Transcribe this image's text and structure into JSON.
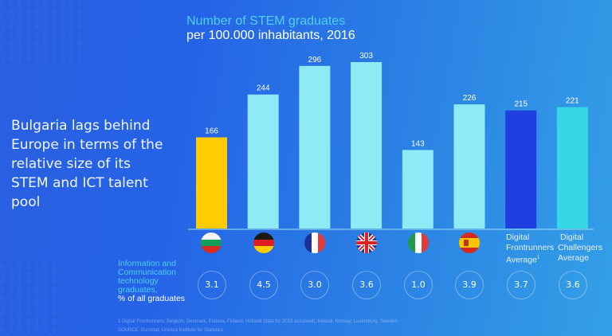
{
  "headline": "Bulgaria lags behind Europe in terms of the relative size of its STEM and ICT talent pool",
  "chart_data": {
    "type": "bar",
    "title": "Number of STEM graduates",
    "subtitle": "per 100.000 inhabitants, 2016",
    "xlabel": "",
    "ylabel": "",
    "ylim": [
      0,
      303
    ],
    "grid": false,
    "categories": [
      "Bulgaria",
      "Germany",
      "France",
      "United Kingdom",
      "Italy",
      "Spain",
      "Digital Frontrunners Average",
      "Digital Challengers Average"
    ],
    "values": [
      166,
      244,
      296,
      303,
      143,
      226,
      215,
      221
    ],
    "value_labels": [
      "166",
      "244",
      "296",
      "303",
      "143",
      "226",
      "215",
      "221"
    ],
    "bar_colors": [
      "#ffcc00",
      "#8eeaf4",
      "#8eeaf4",
      "#8eeaf4",
      "#8eeaf4",
      "#8eeaf4",
      "#1f3fe0",
      "#36d8e8"
    ],
    "category_icons": [
      "flag-bulgaria-icon",
      "flag-germany-icon",
      "flag-france-icon",
      "flag-uk-icon",
      "flag-italy-icon",
      "flag-spain-icon",
      null,
      null
    ],
    "category_text": [
      null,
      null,
      null,
      null,
      null,
      null,
      "Digital Frontrunners Average",
      "Digital Challengers Average"
    ],
    "footnote_marks": [
      null,
      null,
      null,
      null,
      null,
      null,
      "1",
      null
    ]
  },
  "ict": {
    "label_colored": "Information and Communication technology graduates,",
    "label_white": "% of all graduates",
    "values": [
      "3.1",
      "4.5",
      "3.0",
      "3.6",
      "1.0",
      "3.9",
      "3.7",
      "3.6"
    ]
  },
  "cat_labels": {
    "frontrunners": [
      "Digital",
      "Frontrunners",
      "Average"
    ],
    "frontrunners_sup": "1",
    "challengers": [
      "Digital",
      "Challengers",
      "Average"
    ]
  },
  "footnotes": {
    "note1": "1 Digital Frontrunners: Belgium, Denmark, Estonia, Finland, Holland (data for 2015 assumed), Ireland, Norway, Luxemburg, Sweden",
    "source": "SOURCE: Eurostat; Unesco Institute for Statistics"
  }
}
